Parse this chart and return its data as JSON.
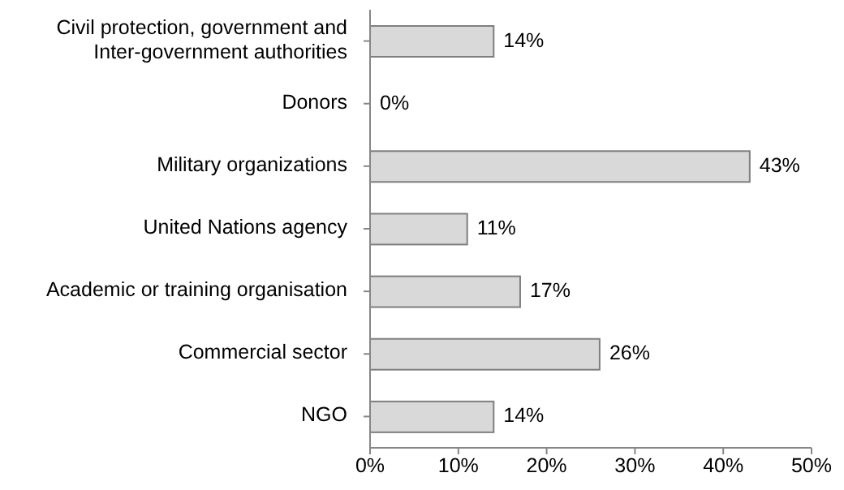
{
  "chart_data": {
    "type": "bar",
    "orientation": "horizontal",
    "categories": [
      "Civil protection, government and Inter-government authorities",
      "Donors",
      "Military organizations",
      "United Nations agency",
      "Academic or training organisation",
      "Commercial sector",
      "NGO"
    ],
    "values": [
      14,
      0,
      43,
      11,
      17,
      26,
      14
    ],
    "value_labels": [
      "14%",
      "0%",
      "43%",
      "11%",
      "17%",
      "26%",
      "14%"
    ],
    "color": "#d9d9d9",
    "xlim": [
      0,
      50
    ],
    "xticks": [
      {
        "value": 0,
        "label": "0%"
      },
      {
        "value": 10,
        "label": "10%"
      },
      {
        "value": 20,
        "label": "20%"
      },
      {
        "value": 30,
        "label": "30%"
      },
      {
        "value": 40,
        "label": "40%"
      },
      {
        "value": 50,
        "label": "50%"
      }
    ],
    "grid": false,
    "legend": false
  }
}
